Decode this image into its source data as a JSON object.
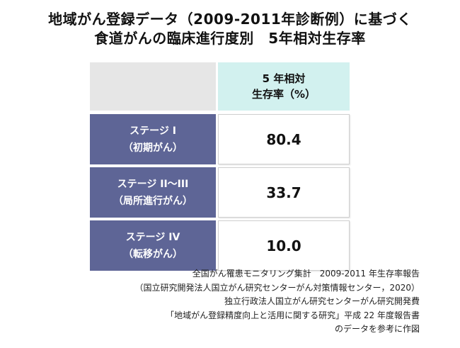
{
  "title_lines": [
    "地域がん登録データ（2009-2011年診断例）に基づく",
    "食道がんの臨床進行度別　5年相対生存率"
  ],
  "chart_data": {
    "type": "table",
    "header": [
      "",
      "5 年相対",
      "生存率（%）"
    ],
    "rows": [
      {
        "stage": "ステージ I",
        "note": "（初期がん）",
        "value": "80.4"
      },
      {
        "stage": "ステージ II〜III",
        "note": "（局所進行がん）",
        "value": "33.7"
      },
      {
        "stage": "ステージ IV",
        "note": "（転移がん）",
        "value": "10.0"
      }
    ]
  },
  "colors": {
    "stage_bg": "#5e6596",
    "header_value_bg": "#d2f1ef",
    "header_blank_bg": "#e6e6e6"
  },
  "source_lines": [
    "全国がん罹患モニタリング集計　2009-2011 年生存率報告",
    "（国立研究開発法人国立がん研究センターがん対策情報センター，2020）",
    "独立行政法人国立がん研究センターがん研究開発費",
    "「地域がん登録精度向上と活用に関する研究」平成 22 年度報告書",
    "のデータを参考に作図"
  ]
}
